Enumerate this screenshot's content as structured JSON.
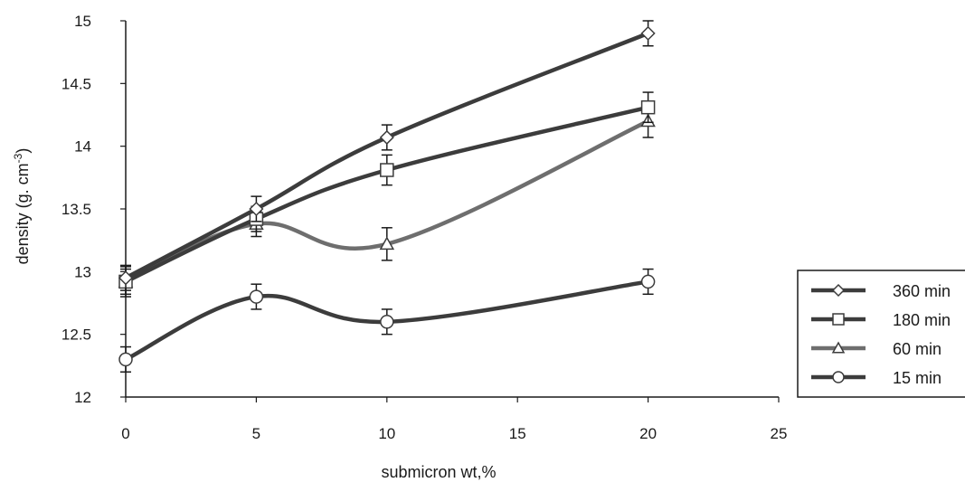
{
  "chart_data": {
    "type": "line",
    "xlabel": "submicron wt,%",
    "ylabel": "density (g. cm",
    "ylabel_sup": "-3",
    "ylabel_end": ")",
    "xlim": [
      0,
      25
    ],
    "ylim": [
      12,
      15
    ],
    "xticks": [
      0,
      5,
      10,
      15,
      20,
      25
    ],
    "yticks": [
      12,
      12.5,
      13,
      13.5,
      14,
      14.5,
      15
    ],
    "grid": false,
    "legend_position": "right",
    "x": [
      0,
      5,
      10,
      20
    ],
    "series": [
      {
        "name": "360 min",
        "marker": "diamond",
        "color": "#3c3c3c",
        "values": [
          12.95,
          13.5,
          14.07,
          14.9
        ],
        "errors": [
          0.1,
          0.1,
          0.1,
          0.1
        ]
      },
      {
        "name": "180 min",
        "marker": "square",
        "color": "#3c3c3c",
        "values": [
          12.92,
          13.42,
          13.81,
          14.31
        ],
        "errors": [
          0.1,
          0.1,
          0.12,
          0.12
        ]
      },
      {
        "name": "60 min",
        "marker": "triangle",
        "color": "#6e6e6e",
        "values": [
          12.92,
          13.38,
          13.22,
          14.2
        ],
        "errors": [
          0.12,
          0.1,
          0.13,
          0.13
        ]
      },
      {
        "name": "15 min",
        "marker": "circle",
        "color": "#3c3c3c",
        "values": [
          12.3,
          12.8,
          12.6,
          12.92
        ],
        "errors": [
          0.1,
          0.1,
          0.1,
          0.1
        ]
      }
    ]
  }
}
